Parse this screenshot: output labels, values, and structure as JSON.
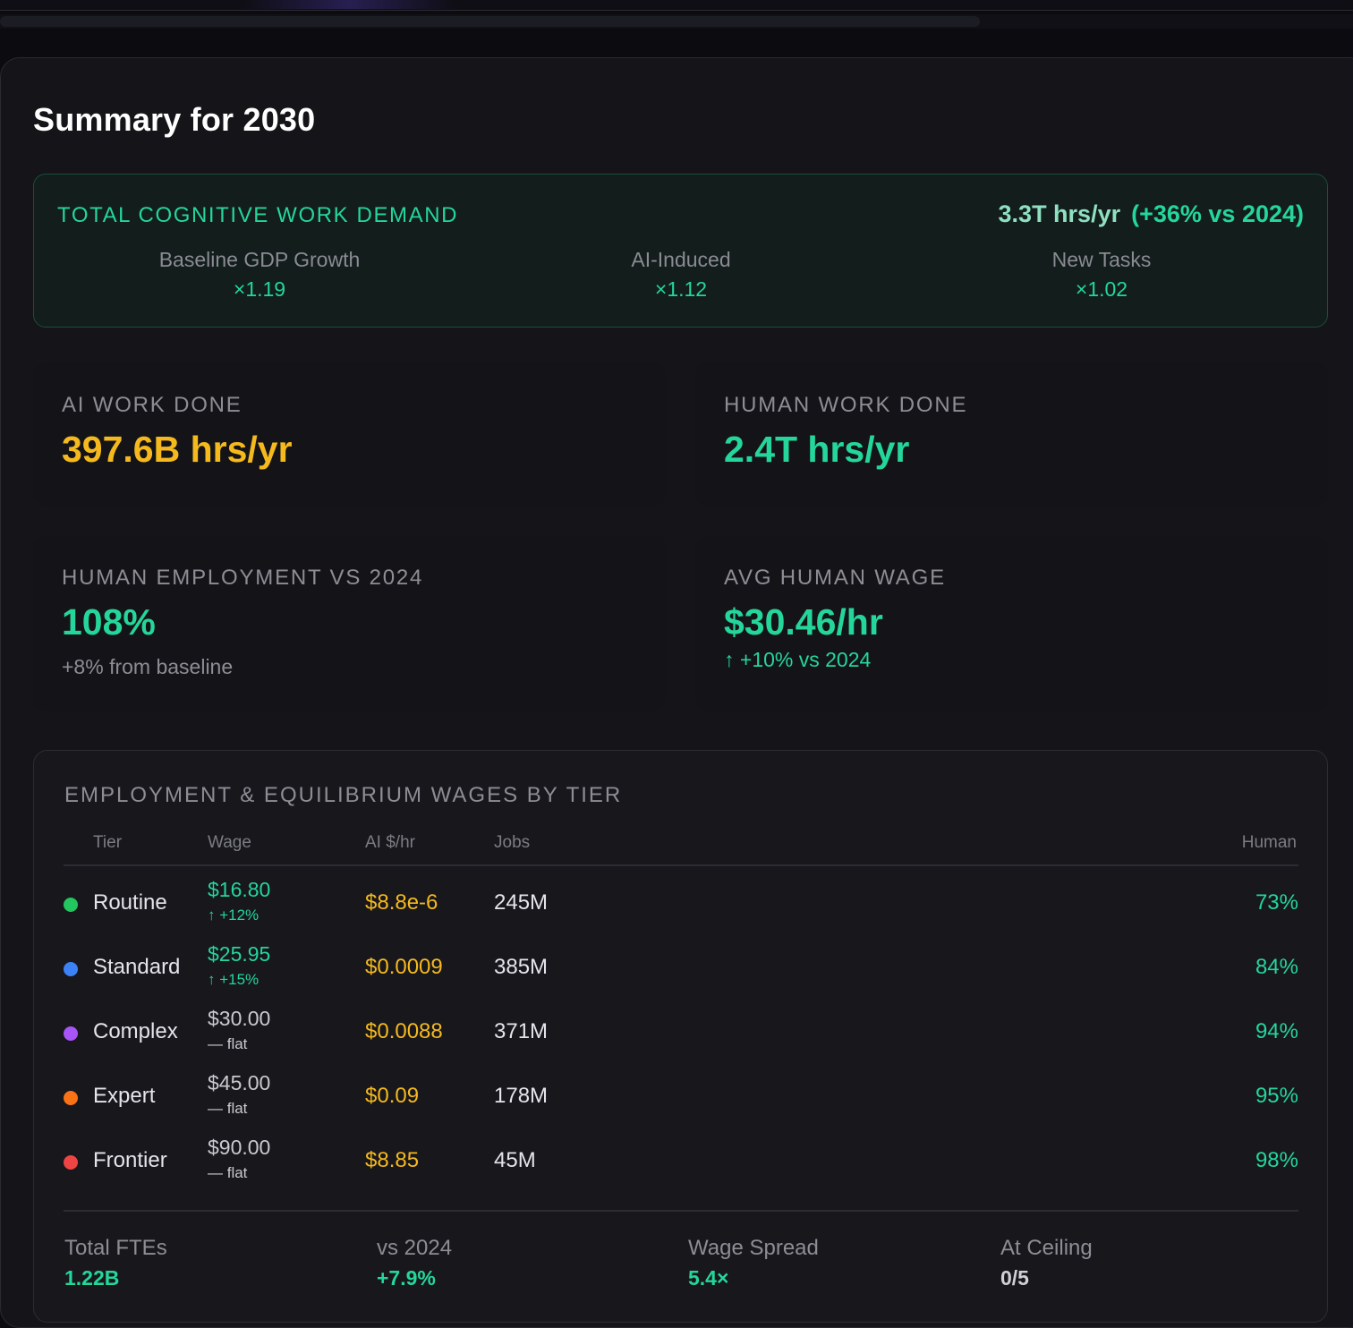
{
  "page": {
    "title": "Summary for 2030"
  },
  "demand": {
    "label": "TOTAL COGNITIVE WORK DEMAND",
    "value": "3.3T hrs/yr",
    "delta": "(+36% vs 2024)",
    "factors": [
      {
        "label": "Baseline GDP Growth",
        "value": "×1.19"
      },
      {
        "label": "AI-Induced",
        "value": "×1.12"
      },
      {
        "label": "New Tasks",
        "value": "×1.02"
      }
    ]
  },
  "stats": {
    "ai_work": {
      "label": "AI WORK DONE",
      "value": "397.6B hrs/yr"
    },
    "human_work": {
      "label": "HUMAN WORK DONE",
      "value": "2.4T hrs/yr"
    },
    "employment": {
      "label": "HUMAN EMPLOYMENT VS 2024",
      "value": "108%",
      "sub": "+8% from baseline"
    },
    "wage": {
      "label": "AVG HUMAN WAGE",
      "value": "$30.46/hr",
      "sub": "↑ +10% vs 2024"
    }
  },
  "tiers": {
    "title": "EMPLOYMENT & EQUILIBRIUM WAGES BY TIER",
    "headers": {
      "tier": "Tier",
      "wage": "Wage",
      "ai": "AI $/hr",
      "jobs": "Jobs",
      "human": "Human"
    },
    "rows": [
      {
        "name": "Routine",
        "color": "#22c55e",
        "wage": "$16.80",
        "change": "↑ +12%",
        "up": true,
        "ai": "$8.8e-6",
        "jobs": "245M",
        "human": "73%"
      },
      {
        "name": "Standard",
        "color": "#3b82f6",
        "wage": "$25.95",
        "change": "↑ +15%",
        "up": true,
        "ai": "$0.0009",
        "jobs": "385M",
        "human": "84%"
      },
      {
        "name": "Complex",
        "color": "#a855f7",
        "wage": "$30.00",
        "change": "— flat",
        "up": false,
        "ai": "$0.0088",
        "jobs": "371M",
        "human": "94%"
      },
      {
        "name": "Expert",
        "color": "#f97316",
        "wage": "$45.00",
        "change": "— flat",
        "up": false,
        "ai": "$0.09",
        "jobs": "178M",
        "human": "95%"
      },
      {
        "name": "Frontier",
        "color": "#ef4444",
        "wage": "$90.00",
        "change": "— flat",
        "up": false,
        "ai": "$8.85",
        "jobs": "45M",
        "human": "98%"
      }
    ],
    "footer": [
      {
        "label": "Total FTEs",
        "value": "1.22B"
      },
      {
        "label": "vs 2024",
        "value": "+7.9%"
      },
      {
        "label": "Wage Spread",
        "value": "5.4×"
      },
      {
        "label": "At Ceiling",
        "value": "0/5"
      }
    ]
  },
  "colors": {
    "green": "#25d69a",
    "amber": "#f5b91e",
    "muted": "#8d8d95",
    "up_wage": "#25d69a",
    "flat_wage": "#c9c9cf"
  }
}
